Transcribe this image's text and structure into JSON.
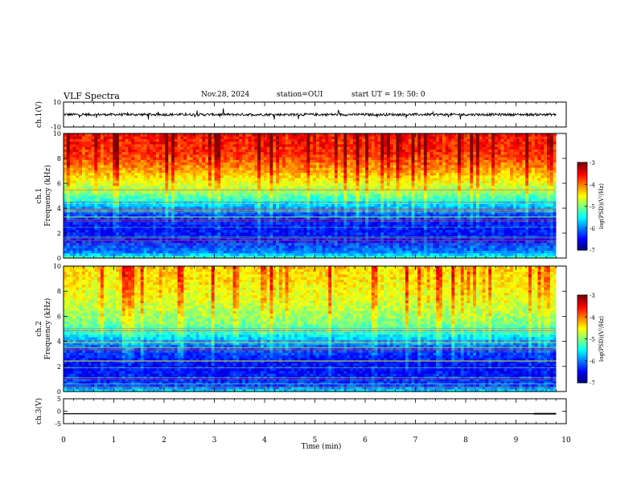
{
  "header": {
    "title": "VLF Spectra",
    "date": "Nov.28, 2024",
    "station": "station=OUI",
    "start": "start  UT =   19: 50: 0"
  },
  "chart_data": [
    {
      "type": "line",
      "panel": "ch1-waveform",
      "ylabel": "ch.1(V)",
      "ylim": [
        -10,
        10
      ],
      "y_ticks": [
        "10",
        "-10"
      ],
      "xlim": [
        0,
        10
      ],
      "data_span_min": [
        0,
        9.8
      ],
      "baseline_v": 0,
      "typical_amplitude_v": 2,
      "color": "#000000"
    },
    {
      "type": "heatmap",
      "panel": "ch1-spectrogram",
      "ylabel": "ch.1 Frequency (kHz)",
      "ylim": [
        0,
        10
      ],
      "y_ticks": [
        "0",
        "2",
        "4",
        "6",
        "8",
        "10"
      ],
      "xlim": [
        0,
        10
      ],
      "data_span_min": [
        0,
        9.8
      ],
      "colorbar": {
        "label": "log(PSD)(V²/Hz)",
        "range": [
          -7,
          -3
        ],
        "ticks": [
          "-3",
          "-4",
          "-5",
          "-6",
          "-7"
        ],
        "colormap": "jet"
      },
      "profile": [
        {
          "freq_khz": 0.0,
          "log_psd": -5.2
        },
        {
          "freq_khz": 0.5,
          "log_psd": -6.0
        },
        {
          "freq_khz": 1.5,
          "log_psd": -6.4
        },
        {
          "freq_khz": 2.5,
          "log_psd": -6.5
        },
        {
          "freq_khz": 3.5,
          "log_psd": -6.3
        },
        {
          "freq_khz": 4.5,
          "log_psd": -5.6
        },
        {
          "freq_khz": 5.5,
          "log_psd": -4.9
        },
        {
          "freq_khz": 6.5,
          "log_psd": -4.5
        },
        {
          "freq_khz": 7.5,
          "log_psd": -4.1
        },
        {
          "freq_khz": 8.5,
          "log_psd": -3.8
        },
        {
          "freq_khz": 10.0,
          "log_psd": -3.7
        }
      ]
    },
    {
      "type": "heatmap",
      "panel": "ch2-spectrogram",
      "ylabel": "ch.2 Frequency (kHz)",
      "ylim": [
        0,
        10
      ],
      "y_ticks": [
        "0",
        "2",
        "4",
        "6",
        "8",
        "10"
      ],
      "xlim": [
        0,
        10
      ],
      "data_span_min": [
        0,
        9.8
      ],
      "colorbar": {
        "label": "log(PSD)(V²/Hz)",
        "range": [
          -7,
          -3
        ],
        "ticks": [
          "-3",
          "-4",
          "-5",
          "-6",
          "-7"
        ],
        "colormap": "jet"
      },
      "profile": [
        {
          "freq_khz": 0.0,
          "log_psd": -5.5
        },
        {
          "freq_khz": 0.5,
          "log_psd": -6.2
        },
        {
          "freq_khz": 1.5,
          "log_psd": -6.5
        },
        {
          "freq_khz": 2.5,
          "log_psd": -6.5
        },
        {
          "freq_khz": 3.5,
          "log_psd": -6.2
        },
        {
          "freq_khz": 4.5,
          "log_psd": -5.6
        },
        {
          "freq_khz": 5.5,
          "log_psd": -5.1
        },
        {
          "freq_khz": 6.5,
          "log_psd": -4.9
        },
        {
          "freq_khz": 7.5,
          "log_psd": -4.7
        },
        {
          "freq_khz": 8.5,
          "log_psd": -4.6
        },
        {
          "freq_khz": 10.0,
          "log_psd": -4.5
        }
      ]
    },
    {
      "type": "line",
      "panel": "ch3-waveform",
      "ylabel": "ch.3(V)",
      "ylim": [
        -5,
        5
      ],
      "y_ticks": [
        "5",
        "0",
        "-5"
      ],
      "xlim": [
        0,
        10
      ],
      "data_span_min": [
        0,
        9.8
      ],
      "level_v": -1,
      "step_start_min": 9.35,
      "step_level_v": -0.7,
      "color": "#000000"
    }
  ],
  "x_axis": {
    "label": "Time (min)",
    "ticks": [
      "0",
      "1",
      "2",
      "3",
      "4",
      "5",
      "6",
      "7",
      "8",
      "9",
      "10"
    ]
  }
}
